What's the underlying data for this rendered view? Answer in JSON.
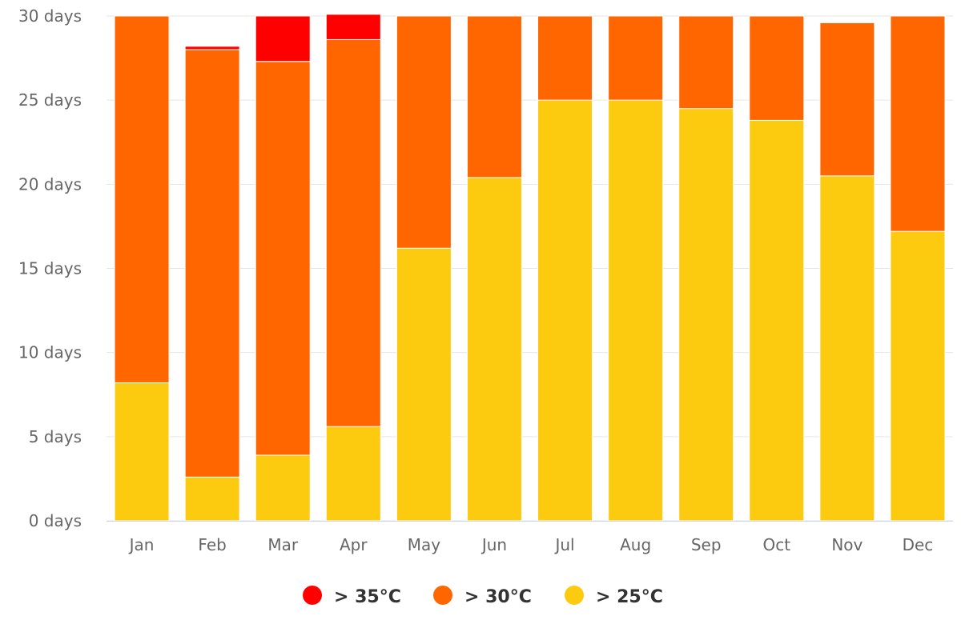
{
  "chart_data": {
    "type": "bar",
    "stacked": true,
    "categories": [
      "Jan",
      "Feb",
      "Mar",
      "Apr",
      "May",
      "Jun",
      "Jul",
      "Aug",
      "Sep",
      "Oct",
      "Nov",
      "Dec"
    ],
    "series": [
      {
        "name": "> 25°C",
        "color": "#fccb10",
        "values": [
          8.2,
          2.6,
          3.9,
          5.6,
          16.2,
          20.4,
          25.0,
          25.0,
          24.5,
          23.8,
          20.5,
          17.2
        ]
      },
      {
        "name": "> 30°C",
        "color": "#ff6600",
        "values": [
          21.8,
          25.4,
          23.4,
          23.0,
          13.8,
          9.6,
          5.0,
          5.0,
          5.5,
          6.2,
          9.1,
          12.8
        ]
      },
      {
        "name": "> 35°C",
        "color": "#ff0000",
        "values": [
          0,
          0.2,
          2.7,
          1.5,
          0,
          0,
          0,
          0,
          0,
          0,
          0,
          0
        ]
      }
    ],
    "yticks": [
      "0 days",
      "5 days",
      "10 days",
      "15 days",
      "20 days",
      "25 days",
      "30 days"
    ],
    "ylim": [
      0,
      30
    ],
    "grid": true,
    "legend": {
      "position": "bottom-center",
      "items": [
        {
          "label": "> 35°C",
          "color": "#ff0000"
        },
        {
          "label": "> 30°C",
          "color": "#ff6600"
        },
        {
          "label": "> 25°C",
          "color": "#fccb10"
        }
      ]
    }
  }
}
